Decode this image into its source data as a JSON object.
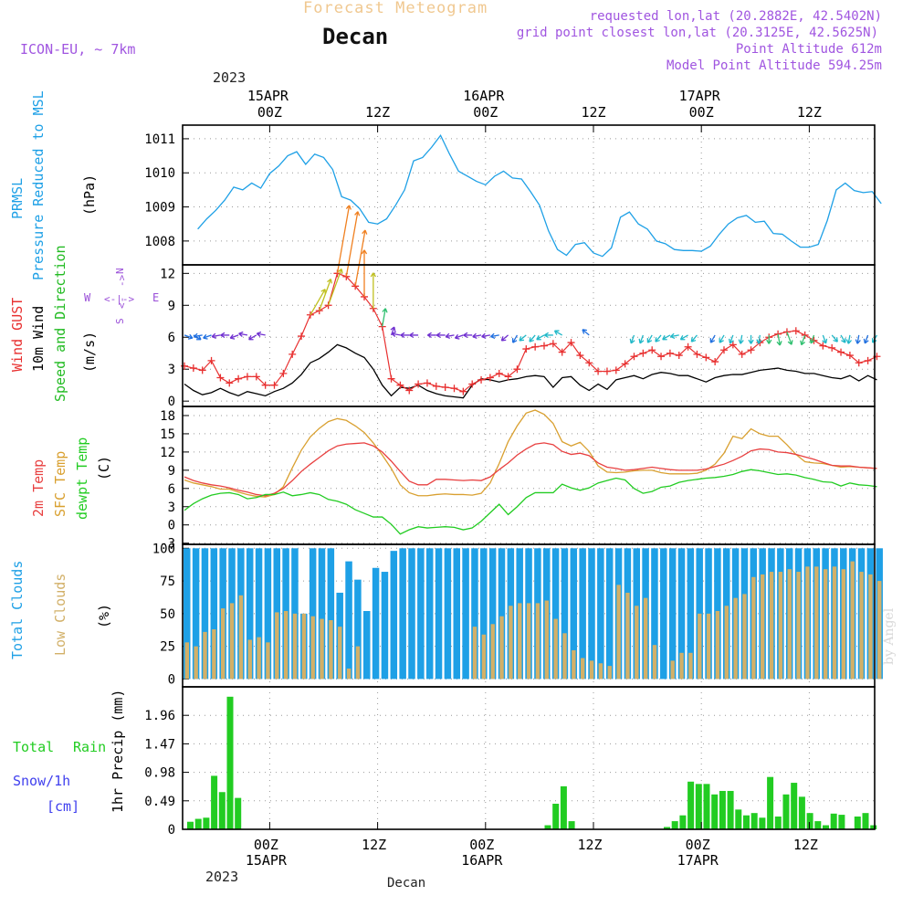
{
  "header": {
    "product": "Forecast Meteogram",
    "location": "Decan",
    "model": "ICON-EU, ~ 7km",
    "requested": "requested lon,lat (20.2882E, 42.5402N)",
    "gridpoint": "grid point closest lon,lat (20.3125E, 42.5625N)",
    "point_alt": "Point Altitude 612m",
    "model_alt": "Model Point Altitude 594.25m",
    "footer_label": "Decan",
    "credit": "by Angel"
  },
  "colors": {
    "pressure": "#1ea0e6",
    "gust": "#e83030",
    "wind": "#000000",
    "dir": "#22bb22",
    "t2m": "#e84040",
    "sfc": "#d9a030",
    "dew": "#22cc22",
    "total_cloud": "#1ea0e6",
    "low_cloud": "#d2b068",
    "precip": "#22cc22",
    "snow": "#4040ee",
    "compass": "#9a4fd8",
    "title_orange": "#f0c890",
    "info_purple": "#a055e0"
  },
  "time_axis": {
    "top_year": "2023",
    "bottom_year": "2023",
    "ticks": [
      {
        "hour": 4,
        "top": "00Z",
        "date": "15APR"
      },
      {
        "hour": 16,
        "top": "12Z",
        "date": ""
      },
      {
        "hour": 28,
        "top": "00Z",
        "date": "16APR"
      },
      {
        "hour": 40,
        "top": "12Z",
        "date": ""
      },
      {
        "hour": 52,
        "top": "00Z",
        "date": "17APR"
      },
      {
        "hour": 64,
        "top": "12Z",
        "date": ""
      }
    ]
  },
  "panels": {
    "pressure": {
      "labels": [
        "PRMSL",
        "Pressure Reduced to MSL"
      ],
      "unit": "(hPa)",
      "yticks": [
        "1008",
        "1009",
        "1010",
        "1011"
      ]
    },
    "wind": {
      "labels": [
        "Wind GUST",
        "10m Wind",
        "Speed and Direction"
      ],
      "unit": "(m/s)",
      "yticks": [
        "0",
        "3",
        "6",
        "9",
        "12"
      ],
      "compass": {
        "n": "N",
        "s": "S",
        "w": "W",
        "e": "E"
      }
    },
    "temp": {
      "labels": [
        "2m Temp",
        "SFC Temp",
        "dewpt Temp"
      ],
      "unit": "(C)",
      "yticks": [
        "-3",
        "0",
        "3",
        "6",
        "9",
        "12",
        "15",
        "18"
      ]
    },
    "cloud": {
      "labels": [
        "Total Clouds",
        "Low Clouds"
      ],
      "unit": "(%)",
      "yticks": [
        "0",
        "25",
        "50",
        "75",
        "100"
      ]
    },
    "precip": {
      "labels": [
        "Total",
        "Rain",
        "Snow/1h",
        "[cm]"
      ],
      "unit": "1hr Precip (mm)",
      "yticks": [
        "0",
        "0.49",
        "0.98",
        "1.47",
        "1.96"
      ]
    }
  },
  "chart_data": [
    {
      "type": "line",
      "title": "PRMSL Pressure Reduced to MSL",
      "ylabel": "hPa",
      "ylim": [
        1007.3,
        1011.4
      ],
      "x_unit": "hours since 2023-04-14 20Z",
      "series": [
        {
          "name": "PRMSL",
          "x": [
            0,
            1,
            2,
            3,
            4,
            5,
            6,
            7,
            8,
            9,
            10,
            11,
            12,
            13,
            14,
            15,
            16,
            17,
            18,
            19,
            20,
            21,
            22,
            23,
            24,
            25,
            26,
            27,
            28,
            29,
            30,
            31,
            32,
            33,
            34,
            35,
            36,
            37,
            38,
            39,
            40,
            41,
            42,
            43,
            44,
            45,
            46,
            47,
            48,
            49,
            50,
            51,
            52,
            53,
            54,
            55,
            56,
            57,
            58,
            59,
            60,
            61,
            62,
            63,
            64,
            65,
            66,
            67,
            68,
            69,
            70,
            71,
            72,
            73,
            74,
            75,
            76
          ],
          "values": [
            1008.35,
            1008.65,
            1008.9,
            1009.2,
            1009.58,
            1009.5,
            1009.7,
            1009.55,
            1009.98,
            1010.2,
            1010.5,
            1010.62,
            1010.25,
            1010.55,
            1010.45,
            1010.1,
            1009.3,
            1009.2,
            1008.95,
            1008.55,
            1008.5,
            1008.65,
            1009.05,
            1009.5,
            1010.35,
            1010.45,
            1010.75,
            1011.1,
            1010.55,
            1010.05,
            1009.9,
            1009.75,
            1009.65,
            1009.9,
            1010.05,
            1009.85,
            1009.82,
            1009.45,
            1009.05,
            1008.3,
            1007.75,
            1007.58,
            1007.9,
            1007.95,
            1007.65,
            1007.55,
            1007.8,
            1008.7,
            1008.85,
            1008.5,
            1008.35,
            1008.0,
            1007.92,
            1007.75,
            1007.72,
            1007.72,
            1007.7,
            1007.85,
            1008.2,
            1008.5,
            1008.68,
            1008.75,
            1008.55,
            1008.58,
            1008.22,
            1008.2,
            1008.0,
            1007.82,
            1007.82,
            1007.9,
            1008.6,
            1009.5,
            1009.7,
            1009.48,
            1009.42,
            1009.45,
            1009.1
          ]
        }
      ]
    },
    {
      "type": "line",
      "title": "Wind GUST / 10m Wind Speed and Direction",
      "ylabel": "m/s",
      "ylim": [
        -0.5,
        12.8
      ],
      "x_unit": "hours since 2023-04-14 20Z",
      "series": [
        {
          "name": "Wind GUST",
          "values": [
            3.3,
            3.1,
            2.9,
            3.8,
            2.2,
            1.7,
            2.1,
            2.3,
            2.3,
            1.5,
            1.5,
            2.6,
            4.4,
            6.1,
            8.1,
            8.5,
            9.0,
            12.0,
            11.7,
            10.8,
            9.8,
            8.7,
            7.0,
            2.1,
            1.5,
            1.0,
            1.6,
            1.7,
            1.4,
            1.3,
            1.2,
            0.9,
            1.6,
            2.0,
            2.2,
            2.6,
            2.3,
            3.0,
            4.9,
            5.1,
            5.2,
            5.4,
            4.6,
            5.5,
            4.3,
            3.6,
            2.8,
            2.8,
            2.9,
            3.5,
            4.2,
            4.5,
            4.8,
            4.2,
            4.5,
            4.3,
            5.1,
            4.4,
            4.1,
            3.7,
            4.8,
            5.3,
            4.4,
            4.8,
            5.5,
            6.0,
            6.3,
            6.5,
            6.6,
            6.2,
            5.7,
            5.2,
            5.0,
            4.6,
            4.3,
            3.6,
            3.8,
            4.2
          ]
        },
        {
          "name": "10m Wind",
          "values": [
            1.6,
            1.0,
            0.6,
            0.8,
            1.2,
            0.8,
            0.5,
            0.9,
            0.7,
            0.5,
            0.9,
            1.2,
            1.7,
            2.5,
            3.6,
            4.0,
            4.6,
            5.3,
            5.0,
            4.5,
            4.1,
            3.0,
            1.5,
            0.5,
            1.3,
            1.2,
            1.5,
            1.0,
            0.7,
            0.5,
            0.4,
            0.3,
            1.5,
            2.1,
            2.0,
            1.8,
            2.0,
            2.1,
            2.3,
            2.4,
            2.3,
            1.3,
            2.2,
            2.3,
            1.5,
            1.0,
            1.6,
            1.1,
            2.0,
            2.2,
            2.4,
            2.1,
            2.5,
            2.7,
            2.6,
            2.4,
            2.4,
            2.1,
            1.8,
            2.2,
            2.4,
            2.5,
            2.5,
            2.7,
            2.9,
            3.0,
            3.1,
            2.9,
            2.8,
            2.6,
            2.6,
            2.4,
            2.2,
            2.1,
            2.4,
            1.9,
            2.4,
            2.0
          ]
        },
        {
          "name": "Direction (deg, from)",
          "values": [
            290,
            300,
            80,
            70,
            80,
            90,
            70,
            100,
            60,
            100,
            null,
            null,
            null,
            null,
            210,
            200,
            200,
            190,
            190,
            190,
            180,
            180,
            190,
            200,
            100,
            90,
            90,
            null,
            90,
            90,
            80,
            70,
            90,
            80,
            80,
            80,
            50,
            30,
            50,
            40,
            60,
            90,
            120,
            null,
            null,
            130,
            null,
            null,
            null,
            null,
            20,
            20,
            30,
            40,
            60,
            80,
            60,
            40,
            null,
            30,
            30,
            20,
            10,
            0,
            10,
            0,
            350,
            340,
            null,
            20,
            20,
            340,
            320,
            330,
            10,
            10,
            20,
            30
          ]
        }
      ]
    },
    {
      "type": "line",
      "title": "2m Temp / SFC Temp / dewpt Temp",
      "ylabel": "C",
      "ylim": [
        -3.2,
        19.5
      ],
      "x_unit": "hours since 2023-04-14 20Z",
      "series": [
        {
          "name": "2m Temp",
          "values": [
            7.9,
            7.3,
            6.9,
            6.6,
            6.4,
            6.1,
            5.7,
            5.4,
            5.0,
            4.8,
            5.2,
            6.0,
            7.3,
            8.8,
            10.0,
            11.1,
            12.2,
            13.0,
            13.3,
            13.4,
            13.5,
            13.0,
            12.0,
            10.5,
            8.8,
            7.2,
            6.6,
            6.6,
            7.5,
            7.5,
            7.4,
            7.3,
            7.4,
            7.3,
            7.9,
            9.1,
            10.2,
            11.5,
            12.5,
            13.3,
            13.5,
            13.2,
            12.1,
            11.6,
            11.8,
            11.4,
            10.2,
            9.5,
            9.3,
            9.0,
            9.1,
            9.3,
            9.5,
            9.3,
            9.1,
            9.0,
            9.0,
            9.0,
            9.2,
            9.6,
            10.0,
            10.6,
            11.3,
            12.2,
            12.5,
            12.4,
            12.0,
            11.9,
            11.6,
            11.2,
            10.8,
            10.3,
            9.8,
            9.7,
            9.7,
            9.5,
            9.4,
            9.3
          ]
        },
        {
          "name": "SFC Temp",
          "values": [
            7.4,
            6.9,
            6.6,
            6.3,
            5.9,
            5.9,
            5.4,
            5.0,
            4.7,
            4.6,
            5.0,
            6.3,
            9.4,
            12.3,
            14.5,
            15.9,
            17.0,
            17.5,
            17.2,
            16.3,
            15.2,
            13.5,
            11.5,
            9.3,
            6.6,
            5.3,
            4.8,
            4.8,
            5.0,
            5.1,
            5.0,
            5.0,
            4.9,
            5.2,
            6.9,
            10.1,
            13.7,
            16.3,
            18.4,
            18.9,
            18.2,
            16.7,
            13.7,
            13.0,
            13.6,
            12.1,
            9.7,
            8.7,
            8.6,
            8.7,
            8.9,
            9.0,
            9.0,
            8.6,
            8.4,
            8.4,
            8.4,
            8.5,
            9.0,
            10.0,
            11.8,
            14.6,
            14.2,
            15.8,
            15.0,
            14.6,
            14.6,
            13.2,
            11.6,
            10.4,
            10.2,
            10.1,
            9.8,
            9.5,
            9.6,
            9.5,
            9.4,
            9.3
          ]
        },
        {
          "name": "dewpt Temp",
          "values": [
            2.4,
            3.5,
            4.3,
            4.9,
            5.2,
            5.3,
            5.0,
            4.3,
            4.5,
            5.0,
            5.0,
            5.4,
            4.8,
            5.0,
            5.3,
            5.0,
            4.2,
            3.9,
            3.4,
            2.5,
            1.9,
            1.3,
            1.3,
            0.1,
            -1.5,
            -0.8,
            -0.3,
            -0.5,
            -0.4,
            -0.3,
            -0.4,
            -0.8,
            -0.5,
            0.6,
            2.0,
            3.4,
            1.7,
            3.0,
            4.5,
            5.3,
            5.3,
            5.3,
            6.7,
            6.1,
            5.7,
            6.1,
            6.9,
            7.3,
            7.7,
            7.4,
            6.0,
            5.2,
            5.5,
            6.2,
            6.4,
            7.0,
            7.3,
            7.5,
            7.7,
            7.8,
            8.0,
            8.3,
            8.8,
            9.1,
            8.9,
            8.6,
            8.3,
            8.4,
            8.2,
            7.8,
            7.5,
            7.1,
            7.0,
            6.4,
            6.9,
            6.6,
            6.5,
            6.3
          ]
        }
      ]
    },
    {
      "type": "bar",
      "title": "Total Clouds / Low Clouds",
      "ylabel": "%",
      "ylim": [
        0,
        100
      ],
      "x_unit": "hours since 2023-04-14 20Z",
      "series": [
        {
          "name": "Total Clouds",
          "values": [
            100,
            100,
            100,
            100,
            100,
            100,
            100,
            100,
            100,
            100,
            100,
            100,
            100,
            50,
            100,
            100,
            100,
            66,
            90,
            76,
            52,
            85,
            82,
            98,
            100,
            100,
            100,
            100,
            100,
            100,
            100,
            100,
            100,
            100,
            100,
            100,
            100,
            100,
            100,
            100,
            100,
            100,
            100,
            100,
            100,
            100,
            100,
            100,
            100,
            100,
            100,
            100,
            100,
            100,
            100,
            100,
            100,
            100,
            100,
            100,
            100,
            100,
            100,
            100,
            100,
            100,
            100,
            100,
            100,
            100,
            100,
            100,
            100,
            100,
            100,
            100,
            100,
            100
          ]
        },
        {
          "name": "Low Clouds",
          "values": [
            28,
            25,
            36,
            38,
            54,
            58,
            64,
            30,
            32,
            28,
            51,
            52,
            50,
            50,
            48,
            46,
            45,
            40,
            8,
            25,
            0,
            0,
            0,
            0,
            0,
            0,
            0,
            0,
            0,
            0,
            0,
            0,
            40,
            34,
            42,
            48,
            56,
            58,
            58,
            58,
            60,
            46,
            35,
            22,
            16,
            14,
            12,
            10,
            72,
            66,
            56,
            62,
            26,
            0,
            14,
            20,
            20,
            50,
            50,
            52,
            56,
            62,
            65,
            78,
            80,
            82,
            82,
            84,
            82,
            86,
            86,
            84,
            86,
            84,
            90,
            82,
            80,
            75
          ]
        }
      ]
    },
    {
      "type": "bar",
      "title": "1hr Precip",
      "ylabel": "1hr Precip (mm)",
      "ylim": [
        0,
        2.45
      ],
      "x_unit": "hours since 2023-04-14 20Z",
      "series": [
        {
          "name": "Total Rain",
          "values": [
            0.13,
            0.18,
            0.2,
            0.92,
            0.64,
            2.28,
            0.54,
            0,
            0,
            0,
            0,
            0,
            0,
            0,
            0,
            0,
            0,
            0,
            0,
            0,
            0,
            0,
            0,
            0,
            0,
            0,
            0,
            0,
            0,
            0,
            0,
            0,
            0,
            0,
            0,
            0,
            0,
            0,
            0,
            0,
            0,
            0,
            0,
            0,
            0,
            0.07,
            0.44,
            0.74,
            0.14,
            0,
            0,
            0,
            0,
            0,
            0,
            0,
            0,
            0,
            0,
            0,
            0.04,
            0.14,
            0.24,
            0.82,
            0.78,
            0.78,
            0.6,
            0.66,
            0.66,
            0.34,
            0.24,
            0.28,
            0.2,
            0.9,
            0.22,
            0.6,
            0.8,
            0.56,
            0.28,
            0.14,
            0.07,
            0.27,
            0.25,
            0,
            0.22,
            0.28,
            0.07
          ]
        },
        {
          "name": "Snow/1h",
          "values": [
            0
          ]
        }
      ]
    }
  ]
}
